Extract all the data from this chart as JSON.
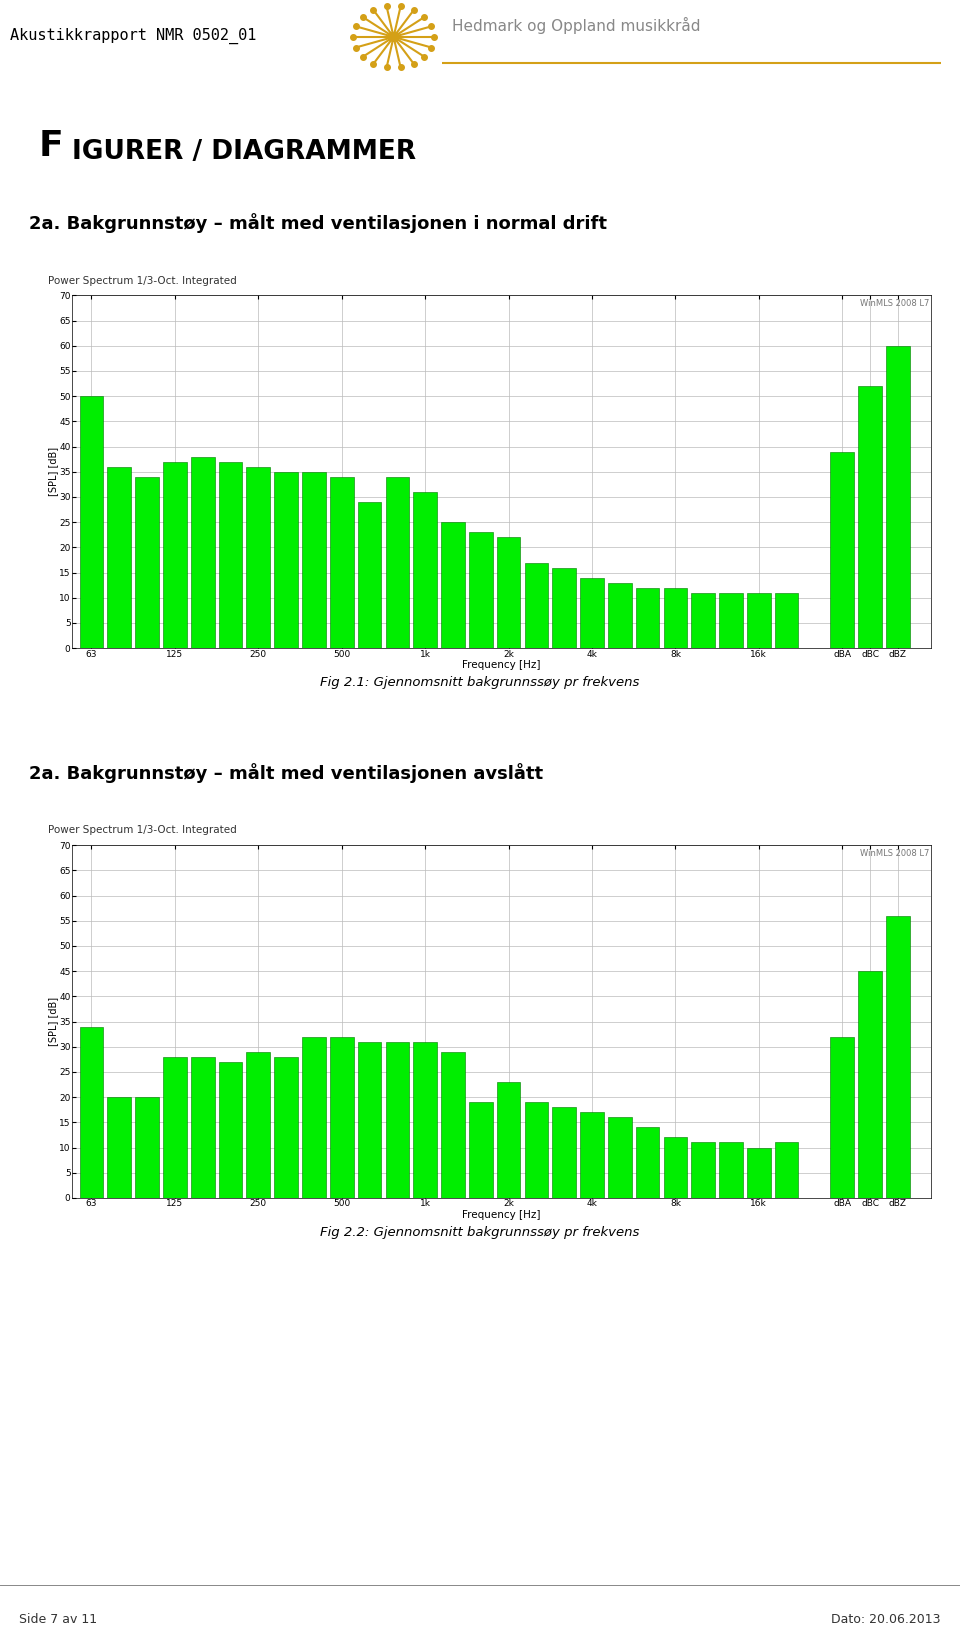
{
  "page_header": "Akustikkrapport NMR 0502_01",
  "page_footer_left": "Side 7 av 11",
  "page_footer_right": "Dato: 20.06.2013",
  "main_title": "Figurer / diagrammer",
  "chart1_title": "2a. Bakgrunnstøy – målt med ventilasjonen i normal drift",
  "chart2_title": "2a. Bakgrunnstøy – målt med ventilasjonen avslått",
  "fig1_caption": "Fig 2.1: Gjennomsnitt bakgrunnssøy pr frekvens",
  "fig2_caption": "Fig 2.2: Gjennomsnitt bakgrunnssøy pr frekvens",
  "chart_supertitle": "Power Spectrum 1/3-Oct. Integrated",
  "watermark": "WinMLS 2008 L7",
  "ylabel": "[SPL] [dB]",
  "xlabel": "Frequency [Hz]",
  "ylim": [
    0,
    70
  ],
  "yticks": [
    0,
    5,
    10,
    15,
    20,
    25,
    30,
    35,
    40,
    45,
    50,
    55,
    60,
    65,
    70
  ],
  "bar_color": "#00ee00",
  "bar_edge_color": "#007700",
  "chart1_values": [
    50,
    36,
    34,
    37,
    38,
    37,
    36,
    35,
    35,
    34,
    29,
    34,
    31,
    25,
    23,
    22,
    17,
    16,
    14,
    13,
    12,
    12,
    11,
    11,
    11,
    11,
    39,
    52,
    60
  ],
  "chart2_values": [
    34,
    20,
    20,
    28,
    28,
    27,
    29,
    28,
    32,
    32,
    31,
    31,
    31,
    29,
    19,
    23,
    19,
    18,
    17,
    16,
    14,
    12,
    11,
    11,
    10,
    11,
    32,
    45,
    56
  ],
  "background_color": "#ffffff",
  "grid_color": "#bbbbbb",
  "header_color": "#d4a017",
  "brand_color": "#888888"
}
